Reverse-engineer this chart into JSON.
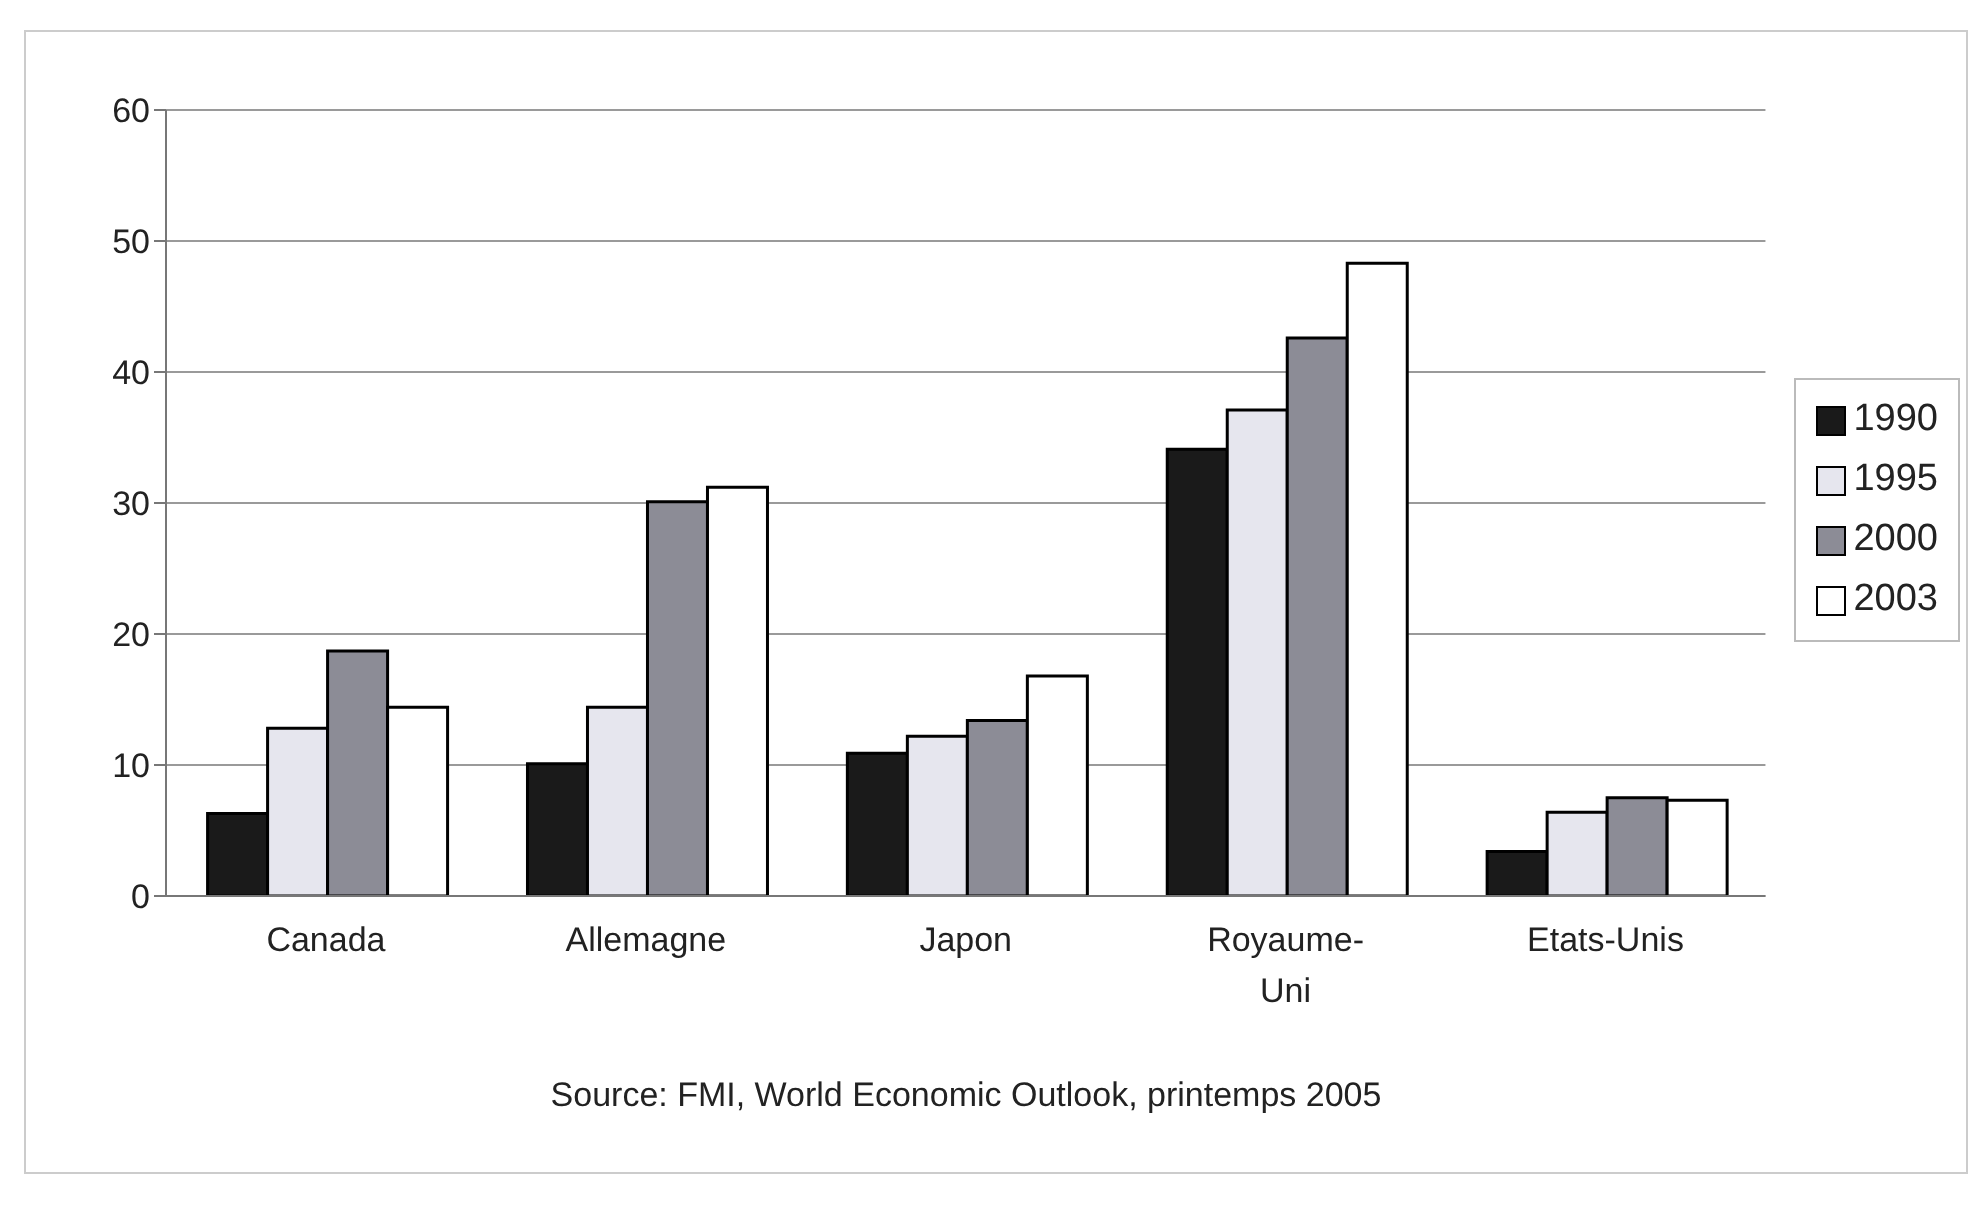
{
  "chart_data": {
    "type": "bar",
    "categories": [
      "Canada",
      "Allemagne",
      "Japon",
      "Royaume-Uni",
      "Etats-Unis"
    ],
    "series": [
      {
        "name": "1990",
        "color": "#1a1a1a",
        "values": [
          6.3,
          10.1,
          10.9,
          34.1,
          3.4
        ]
      },
      {
        "name": "1995",
        "color": "#e6e6ee",
        "values": [
          12.8,
          14.4,
          12.2,
          37.1,
          6.4
        ]
      },
      {
        "name": "2000",
        "color": "#8c8c96",
        "values": [
          18.7,
          30.1,
          13.4,
          42.6,
          7.5
        ]
      },
      {
        "name": "2003",
        "color": "#ffffff",
        "values": [
          14.4,
          31.2,
          16.8,
          48.3,
          7.3
        ]
      }
    ],
    "ylim": [
      0,
      60
    ],
    "yticks": [
      0,
      10,
      20,
      30,
      40,
      50,
      60
    ],
    "grid": "y",
    "legend": "right",
    "annotations": [
      "Source: FMI, World Economic Outlook, printemps 2005"
    ]
  }
}
